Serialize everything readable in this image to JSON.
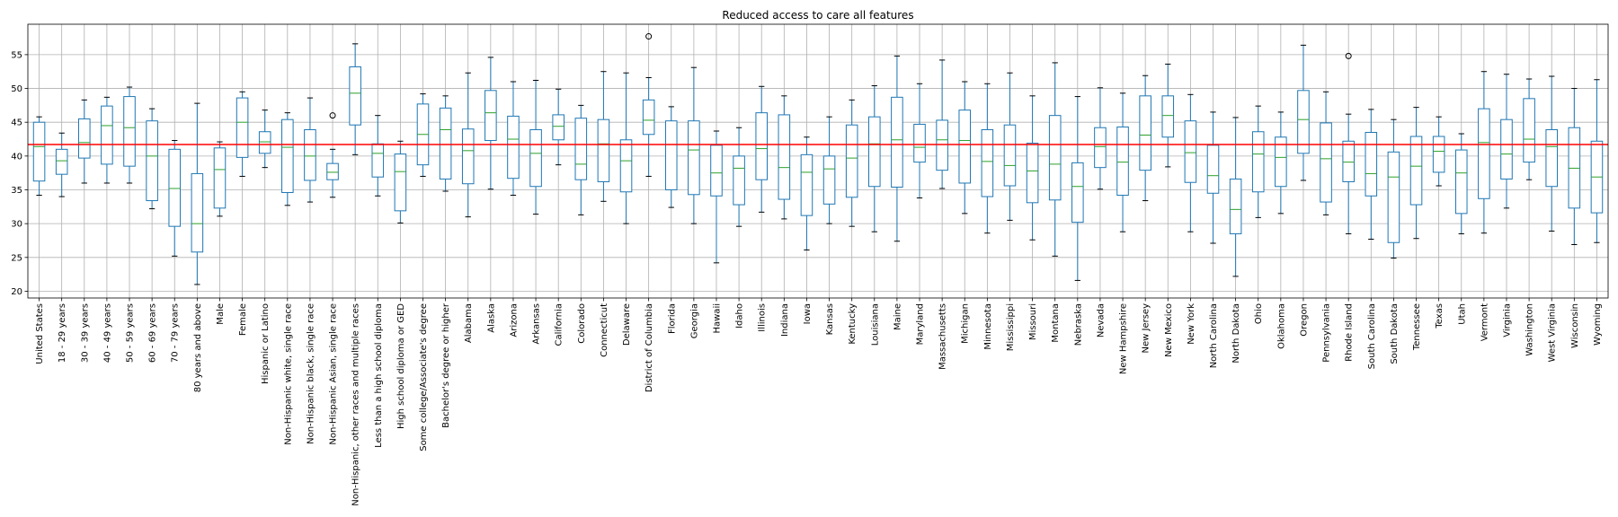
{
  "chart_data": {
    "type": "box",
    "title": "Reduced access to care all features",
    "xlabel": "",
    "ylabel": "",
    "ylim": [
      19,
      59.5
    ],
    "yticks": [
      20,
      25,
      30,
      35,
      40,
      45,
      50,
      55
    ],
    "grid": true,
    "reference_line": {
      "y": 41.7,
      "color": "#ff0000"
    },
    "colors": {
      "box": "#1f77b4",
      "median": "#2ca02c",
      "whisker_cap": "#000000",
      "grid": "#b0b0b0",
      "frame": "#000000"
    },
    "categories": [
      "United States",
      "18 - 29 years",
      "30 - 39 years",
      "40 - 49 years",
      "50 - 59 years",
      "60 - 69 years",
      "70 - 79 years",
      "80 years and above",
      "Male",
      "Female",
      "Hispanic or Latino",
      "Non-Hispanic white, single race",
      "Non-Hispanic black, single race",
      "Non-Hispanic Asian, single race",
      "Non-Hispanic, other races and multiple races",
      "Less than a high school diploma",
      "High school diploma or GED",
      "Some college/Associate's degree",
      "Bachelor's degree or higher",
      "Alabama",
      "Alaska",
      "Arizona",
      "Arkansas",
      "California",
      "Colorado",
      "Connecticut",
      "Delaware",
      "District of Columbia",
      "Florida",
      "Georgia",
      "Hawaii",
      "Idaho",
      "Illinois",
      "Indiana",
      "Iowa",
      "Kansas",
      "Kentucky",
      "Louisiana",
      "Maine",
      "Maryland",
      "Massachusetts",
      "Michigan",
      "Minnesota",
      "Mississippi",
      "Missouri",
      "Montana",
      "Nebraska",
      "Nevada",
      "New Hampshire",
      "New Jersey",
      "New Mexico",
      "New York",
      "North Carolina",
      "North Dakota",
      "Ohio",
      "Oklahoma",
      "Oregon",
      "Pennsylvania",
      "Rhode Island",
      "South Carolina",
      "South Dakota",
      "Tennessee",
      "Texas",
      "Utah",
      "Vermont",
      "Virginia",
      "Washington",
      "West Virginia",
      "Wisconsin",
      "Wyoming"
    ],
    "boxes": [
      {
        "min": 34.2,
        "q1": 36.3,
        "median": 41.4,
        "q3": 45.0,
        "max": 45.8,
        "outliers": []
      },
      {
        "min": 34.0,
        "q1": 37.3,
        "median": 39.3,
        "q3": 41.0,
        "max": 43.4,
        "outliers": []
      },
      {
        "min": 36.0,
        "q1": 39.7,
        "median": 42.0,
        "q3": 45.5,
        "max": 48.3,
        "outliers": []
      },
      {
        "min": 36.0,
        "q1": 38.8,
        "median": 44.5,
        "q3": 47.4,
        "max": 48.7,
        "outliers": []
      },
      {
        "min": 36.0,
        "q1": 38.5,
        "median": 44.2,
        "q3": 48.8,
        "max": 50.2,
        "outliers": []
      },
      {
        "min": 32.2,
        "q1": 33.4,
        "median": 40.0,
        "q3": 45.2,
        "max": 47.0,
        "outliers": []
      },
      {
        "min": 25.2,
        "q1": 29.6,
        "median": 35.2,
        "q3": 41.0,
        "max": 42.3,
        "outliers": []
      },
      {
        "min": 21.0,
        "q1": 25.8,
        "median": 30.0,
        "q3": 37.4,
        "max": 47.8,
        "outliers": []
      },
      {
        "min": 31.1,
        "q1": 32.3,
        "median": 38.0,
        "q3": 41.2,
        "max": 42.1,
        "outliers": []
      },
      {
        "min": 37.0,
        "q1": 39.8,
        "median": 45.0,
        "q3": 48.6,
        "max": 49.5,
        "outliers": []
      },
      {
        "min": 38.3,
        "q1": 40.4,
        "median": 42.1,
        "q3": 43.6,
        "max": 46.8,
        "outliers": []
      },
      {
        "min": 32.7,
        "q1": 34.6,
        "median": 41.3,
        "q3": 45.4,
        "max": 46.4,
        "outliers": []
      },
      {
        "min": 33.2,
        "q1": 36.4,
        "median": 40.0,
        "q3": 43.9,
        "max": 48.6,
        "outliers": []
      },
      {
        "min": 33.9,
        "q1": 36.5,
        "median": 37.6,
        "q3": 38.9,
        "max": 41.0,
        "outliers": [
          46.0
        ]
      },
      {
        "min": 40.2,
        "q1": 44.6,
        "median": 49.3,
        "q3": 53.2,
        "max": 56.6,
        "outliers": []
      },
      {
        "min": 34.1,
        "q1": 36.9,
        "median": 40.4,
        "q3": 41.8,
        "max": 46.0,
        "outliers": []
      },
      {
        "min": 30.1,
        "q1": 31.9,
        "median": 37.7,
        "q3": 40.3,
        "max": 42.2,
        "outliers": []
      },
      {
        "min": 37.0,
        "q1": 38.7,
        "median": 43.2,
        "q3": 47.7,
        "max": 49.2,
        "outliers": []
      },
      {
        "min": 34.8,
        "q1": 36.6,
        "median": 43.9,
        "q3": 47.1,
        "max": 48.9,
        "outliers": []
      },
      {
        "min": 31.0,
        "q1": 35.9,
        "median": 40.8,
        "q3": 44.0,
        "max": 52.3,
        "outliers": []
      },
      {
        "min": 35.1,
        "q1": 42.3,
        "median": 46.4,
        "q3": 49.7,
        "max": 54.6,
        "outliers": []
      },
      {
        "min": 34.2,
        "q1": 36.7,
        "median": 42.5,
        "q3": 45.9,
        "max": 51.0,
        "outliers": []
      },
      {
        "min": 31.4,
        "q1": 35.5,
        "median": 40.4,
        "q3": 43.9,
        "max": 51.2,
        "outliers": []
      },
      {
        "min": 38.7,
        "q1": 42.4,
        "median": 44.4,
        "q3": 46.1,
        "max": 49.9,
        "outliers": []
      },
      {
        "min": 31.3,
        "q1": 36.5,
        "median": 38.8,
        "q3": 45.6,
        "max": 47.5,
        "outliers": []
      },
      {
        "min": 33.3,
        "q1": 36.2,
        "median": 41.8,
        "q3": 45.4,
        "max": 52.5,
        "outliers": []
      },
      {
        "min": 30.0,
        "q1": 34.7,
        "median": 39.3,
        "q3": 42.4,
        "max": 52.3,
        "outliers": []
      },
      {
        "min": 37.0,
        "q1": 43.2,
        "median": 45.3,
        "q3": 48.3,
        "max": 51.6,
        "outliers": [
          57.7
        ]
      },
      {
        "min": 32.4,
        "q1": 35.0,
        "median": 41.7,
        "q3": 45.2,
        "max": 47.3,
        "outliers": []
      },
      {
        "min": 30.0,
        "q1": 34.3,
        "median": 40.9,
        "q3": 45.2,
        "max": 53.1,
        "outliers": []
      },
      {
        "min": 24.2,
        "q1": 34.1,
        "median": 37.5,
        "q3": 41.6,
        "max": 43.7,
        "outliers": []
      },
      {
        "min": 29.6,
        "q1": 32.8,
        "median": 38.2,
        "q3": 40.0,
        "max": 44.2,
        "outliers": []
      },
      {
        "min": 31.7,
        "q1": 36.5,
        "median": 41.1,
        "q3": 46.4,
        "max": 50.3,
        "outliers": []
      },
      {
        "min": 30.7,
        "q1": 33.6,
        "median": 38.3,
        "q3": 46.1,
        "max": 48.9,
        "outliers": []
      },
      {
        "min": 26.1,
        "q1": 31.2,
        "median": 37.6,
        "q3": 40.2,
        "max": 42.8,
        "outliers": []
      },
      {
        "min": 30.0,
        "q1": 32.9,
        "median": 38.1,
        "q3": 40.0,
        "max": 45.8,
        "outliers": []
      },
      {
        "min": 29.6,
        "q1": 33.9,
        "median": 39.7,
        "q3": 44.6,
        "max": 48.3,
        "outliers": []
      },
      {
        "min": 28.8,
        "q1": 35.5,
        "median": 41.8,
        "q3": 45.8,
        "max": 50.4,
        "outliers": []
      },
      {
        "min": 27.4,
        "q1": 35.4,
        "median": 42.4,
        "q3": 48.7,
        "max": 54.8,
        "outliers": []
      },
      {
        "min": 33.8,
        "q1": 39.1,
        "median": 41.3,
        "q3": 44.7,
        "max": 50.7,
        "outliers": []
      },
      {
        "min": 35.2,
        "q1": 37.9,
        "median": 42.4,
        "q3": 45.3,
        "max": 54.2,
        "outliers": []
      },
      {
        "min": 31.5,
        "q1": 36.0,
        "median": 42.3,
        "q3": 46.8,
        "max": 51.0,
        "outliers": []
      },
      {
        "min": 28.6,
        "q1": 34.0,
        "median": 39.2,
        "q3": 43.9,
        "max": 50.7,
        "outliers": []
      },
      {
        "min": 30.5,
        "q1": 35.6,
        "median": 38.6,
        "q3": 44.6,
        "max": 52.3,
        "outliers": []
      },
      {
        "min": 27.6,
        "q1": 33.1,
        "median": 37.8,
        "q3": 41.9,
        "max": 48.9,
        "outliers": []
      },
      {
        "min": 25.2,
        "q1": 33.5,
        "median": 38.8,
        "q3": 46.0,
        "max": 53.8,
        "outliers": []
      },
      {
        "min": 21.6,
        "q1": 30.2,
        "median": 35.5,
        "q3": 39.0,
        "max": 48.8,
        "outliers": []
      },
      {
        "min": 35.1,
        "q1": 38.3,
        "median": 41.4,
        "q3": 44.2,
        "max": 50.1,
        "outliers": []
      },
      {
        "min": 28.8,
        "q1": 34.2,
        "median": 39.1,
        "q3": 44.3,
        "max": 49.3,
        "outliers": []
      },
      {
        "min": 33.4,
        "q1": 37.9,
        "median": 43.1,
        "q3": 48.9,
        "max": 51.9,
        "outliers": []
      },
      {
        "min": 38.4,
        "q1": 42.8,
        "median": 46.0,
        "q3": 48.9,
        "max": 53.6,
        "outliers": []
      },
      {
        "min": 28.8,
        "q1": 36.1,
        "median": 40.5,
        "q3": 45.2,
        "max": 49.1,
        "outliers": []
      },
      {
        "min": 27.1,
        "q1": 34.5,
        "median": 37.1,
        "q3": 41.6,
        "max": 46.5,
        "outliers": []
      },
      {
        "min": 22.2,
        "q1": 28.5,
        "median": 32.1,
        "q3": 36.6,
        "max": 45.7,
        "outliers": []
      },
      {
        "min": 30.9,
        "q1": 34.7,
        "median": 40.3,
        "q3": 43.6,
        "max": 47.4,
        "outliers": []
      },
      {
        "min": 31.5,
        "q1": 35.5,
        "median": 39.8,
        "q3": 42.8,
        "max": 46.5,
        "outliers": []
      },
      {
        "min": 36.4,
        "q1": 40.4,
        "median": 45.4,
        "q3": 49.7,
        "max": 56.4,
        "outliers": []
      },
      {
        "min": 31.3,
        "q1": 33.2,
        "median": 39.6,
        "q3": 44.9,
        "max": 49.5,
        "outliers": []
      },
      {
        "min": 28.5,
        "q1": 36.2,
        "median": 39.1,
        "q3": 42.2,
        "max": 46.2,
        "outliers": [
          54.8
        ]
      },
      {
        "min": 27.7,
        "q1": 34.1,
        "median": 37.4,
        "q3": 43.5,
        "max": 46.9,
        "outliers": []
      },
      {
        "min": 24.9,
        "q1": 27.2,
        "median": 36.9,
        "q3": 40.6,
        "max": 45.4,
        "outliers": []
      },
      {
        "min": 27.8,
        "q1": 32.8,
        "median": 38.5,
        "q3": 42.9,
        "max": 47.2,
        "outliers": []
      },
      {
        "min": 35.6,
        "q1": 37.6,
        "median": 40.7,
        "q3": 42.9,
        "max": 45.8,
        "outliers": []
      },
      {
        "min": 28.5,
        "q1": 31.5,
        "median": 37.5,
        "q3": 40.9,
        "max": 43.3,
        "outliers": []
      },
      {
        "min": 28.6,
        "q1": 33.7,
        "median": 42.0,
        "q3": 47.0,
        "max": 52.5,
        "outliers": []
      },
      {
        "min": 32.3,
        "q1": 36.6,
        "median": 40.3,
        "q3": 45.4,
        "max": 52.1,
        "outliers": []
      },
      {
        "min": 36.5,
        "q1": 39.1,
        "median": 42.5,
        "q3": 48.5,
        "max": 51.4,
        "outliers": []
      },
      {
        "min": 28.9,
        "q1": 35.5,
        "median": 41.4,
        "q3": 43.9,
        "max": 51.8,
        "outliers": []
      },
      {
        "min": 26.9,
        "q1": 32.3,
        "median": 38.2,
        "q3": 44.2,
        "max": 50.0,
        "outliers": []
      },
      {
        "min": 27.2,
        "q1": 31.6,
        "median": 36.9,
        "q3": 42.2,
        "max": 51.3,
        "outliers": []
      }
    ]
  }
}
